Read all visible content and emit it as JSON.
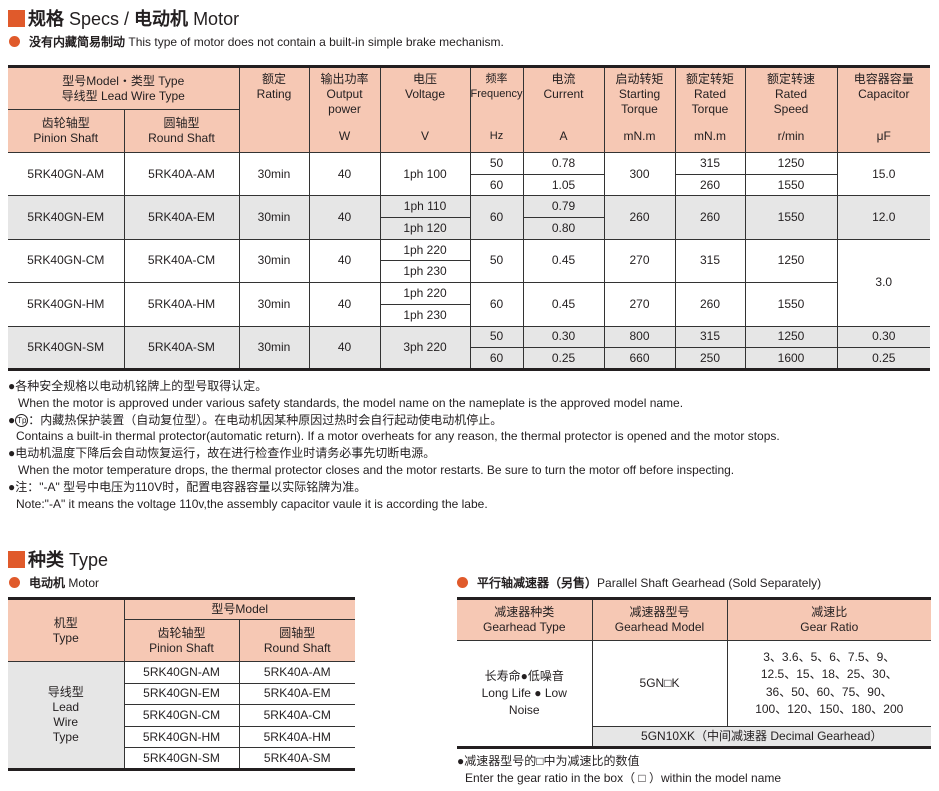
{
  "specs": {
    "title_cn": "规格",
    "title_en": "Specs / ",
    "title_cn2": "电动机",
    "title_en2": "Motor",
    "note_cn": "没有内藏简易制动",
    "note_en": "This type of motor does not contain a built-in simple brake mechanism.",
    "headers": {
      "model_line1": "型号Model・类型 Type",
      "model_line2": "导线型 Lead Wire Type",
      "pinion": [
        "齿轮轴型",
        "Pinion Shaft"
      ],
      "round": [
        "圆轴型",
        "Round Shaft"
      ],
      "rating": [
        "额定",
        "Rating",
        ""
      ],
      "power": [
        "输出功率",
        "Output",
        "power",
        "W"
      ],
      "voltage": [
        "电压",
        "Voltage",
        "V"
      ],
      "frequency": [
        "频率",
        "Frequency",
        "Hz"
      ],
      "current": [
        "电流",
        "Current",
        "A"
      ],
      "starting_torque": [
        "启动转矩",
        "Starting",
        "Torque",
        "mN.m"
      ],
      "rated_torque": [
        "额定转矩",
        "Rated",
        "Torque",
        "mN.m"
      ],
      "rated_speed": [
        "额定转速",
        "Rated",
        "Speed",
        "r/min"
      ],
      "capacitor": [
        "电容器容量",
        "Capacitor",
        "μF"
      ]
    },
    "rows": [
      {
        "pinion": "5RK40GN-AM",
        "round": "5RK40A-AM",
        "rating": "30min",
        "power": "40",
        "voltage": "1ph 100",
        "frequency": [
          "50",
          "60"
        ],
        "current": [
          "0.78",
          "1.05"
        ],
        "starting_torque": "300",
        "rated_torque": [
          "315",
          "260"
        ],
        "rated_speed": [
          "1250",
          "1550"
        ],
        "capacitor": "15.0",
        "shaded": false
      },
      {
        "pinion": "5RK40GN-EM",
        "round": "5RK40A-EM",
        "rating": "30min",
        "power": "40",
        "voltage": [
          "1ph 110",
          "1ph 120"
        ],
        "frequency": "60",
        "current": [
          "0.79",
          "0.80"
        ],
        "starting_torque": "260",
        "rated_torque": "260",
        "rated_speed": "1550",
        "capacitor": "12.0",
        "shaded": true
      },
      {
        "pinion": "5RK40GN-CM",
        "round": "5RK40A-CM",
        "rating": "30min",
        "power": "40",
        "voltage": [
          "1ph 220",
          "1ph 230"
        ],
        "frequency": "50",
        "current": "0.45",
        "starting_torque": "270",
        "rated_torque": "315",
        "rated_speed": "1250",
        "capacitor": "3.0",
        "shaded": false
      },
      {
        "pinion": "5RK40GN-HM",
        "round": "5RK40A-HM",
        "rating": "30min",
        "power": "40",
        "voltage": [
          "1ph 220",
          "1ph 230"
        ],
        "frequency": "60",
        "current": "0.45",
        "starting_torque": "270",
        "rated_torque": "260",
        "rated_speed": "1550",
        "shaded": false
      },
      {
        "pinion": "5RK40GN-SM",
        "round": "5RK40A-SM",
        "rating": "30min",
        "power": "40",
        "voltage": "3ph 220",
        "frequency": [
          "50",
          "60"
        ],
        "current": [
          "0.30",
          "0.25"
        ],
        "starting_torque": [
          "800",
          "660"
        ],
        "rated_torque": [
          "315",
          "250"
        ],
        "rated_speed": [
          "1250",
          "1600"
        ],
        "capacitor": [
          "0.30",
          "0.25"
        ],
        "shaded": true
      }
    ],
    "notes": [
      {
        "cn": "●各种安全规格以电动机铭牌上的型号取得认定。",
        "en": "When the motor is approved under various safety standards, the model name on the nameplate is the approved model name."
      },
      {
        "cn_icon": "Tp",
        "cn": "：内藏热保护装置（自动复位型）。在电动机因某种原因过热时会自行起动使电动机停止。",
        "en": "Contains a built-in thermal protector(automatic return). If a motor overheats for any reason, the thermal protector is opened and the motor stops."
      },
      {
        "cn": "●电动机温度下降后会自动恢复运行，故在进行检查作业时请务必事先切断电源。",
        "en": "When the motor temperature drops, the thermal protector closes and the motor restarts. Be sure to turn the motor off before inspecting."
      },
      {
        "cn": "●注：\"-A\" 型号中电压为110V时，配置电容器容量以实际铭牌为准。",
        "en": "Note:\"-A\" it means the voltage 110v,the assembly capacitor vaule it is according the labe."
      }
    ]
  },
  "types": {
    "title_cn": "种类",
    "title_en": "Type",
    "motor": {
      "sub_cn": "电动机",
      "sub_en": "Motor",
      "h_type": [
        "机型",
        "Type"
      ],
      "h_model": "型号Model",
      "h_pinion": [
        "齿轮轴型",
        "Pinion Shaft"
      ],
      "h_round": [
        "圆轴型",
        "Round Shaft"
      ],
      "type_label": [
        "导线型",
        "Lead",
        "Wire",
        "Type"
      ],
      "rows": [
        [
          "5RK40GN-AM",
          "5RK40A-AM"
        ],
        [
          "5RK40GN-EM",
          "5RK40A-EM"
        ],
        [
          "5RK40GN-CM",
          "5RK40A-CM"
        ],
        [
          "5RK40GN-HM",
          "5RK40A-HM"
        ],
        [
          "5RK40GN-SM",
          "5RK40A-SM"
        ]
      ]
    },
    "gearhead": {
      "sub_cn": "平行轴减速器（另售）",
      "sub_en": "Parallel Shaft Gearhead (Sold Separately)",
      "h_type": [
        "减速器种类",
        "Gearhead Type"
      ],
      "h_model": [
        "减速器型号",
        "Gearhead Model"
      ],
      "h_ratio": [
        "减速比",
        "Gear Ratio"
      ],
      "type_label": [
        "长寿命●低噪音",
        "Long Life ● Low",
        "Noise"
      ],
      "model": "5GN□K",
      "ratios": [
        "3、3.6、5、6、7.5、9、",
        "12.5、15、18、25、30、",
        "36、50、60、75、90、",
        "100、120、150、180、200"
      ],
      "decimal": "5GN10XK（中间减速器 Decimal Gearhead）",
      "note_cn": "●减速器型号的□中为减速比的数值",
      "note_en": "Enter the gear ratio in the box（ □ ）within the model name"
    }
  },
  "colors": {
    "accent": "#e05a2b",
    "header_bg": "#f6c8b4",
    "shaded_row": "#e6e6e6"
  }
}
